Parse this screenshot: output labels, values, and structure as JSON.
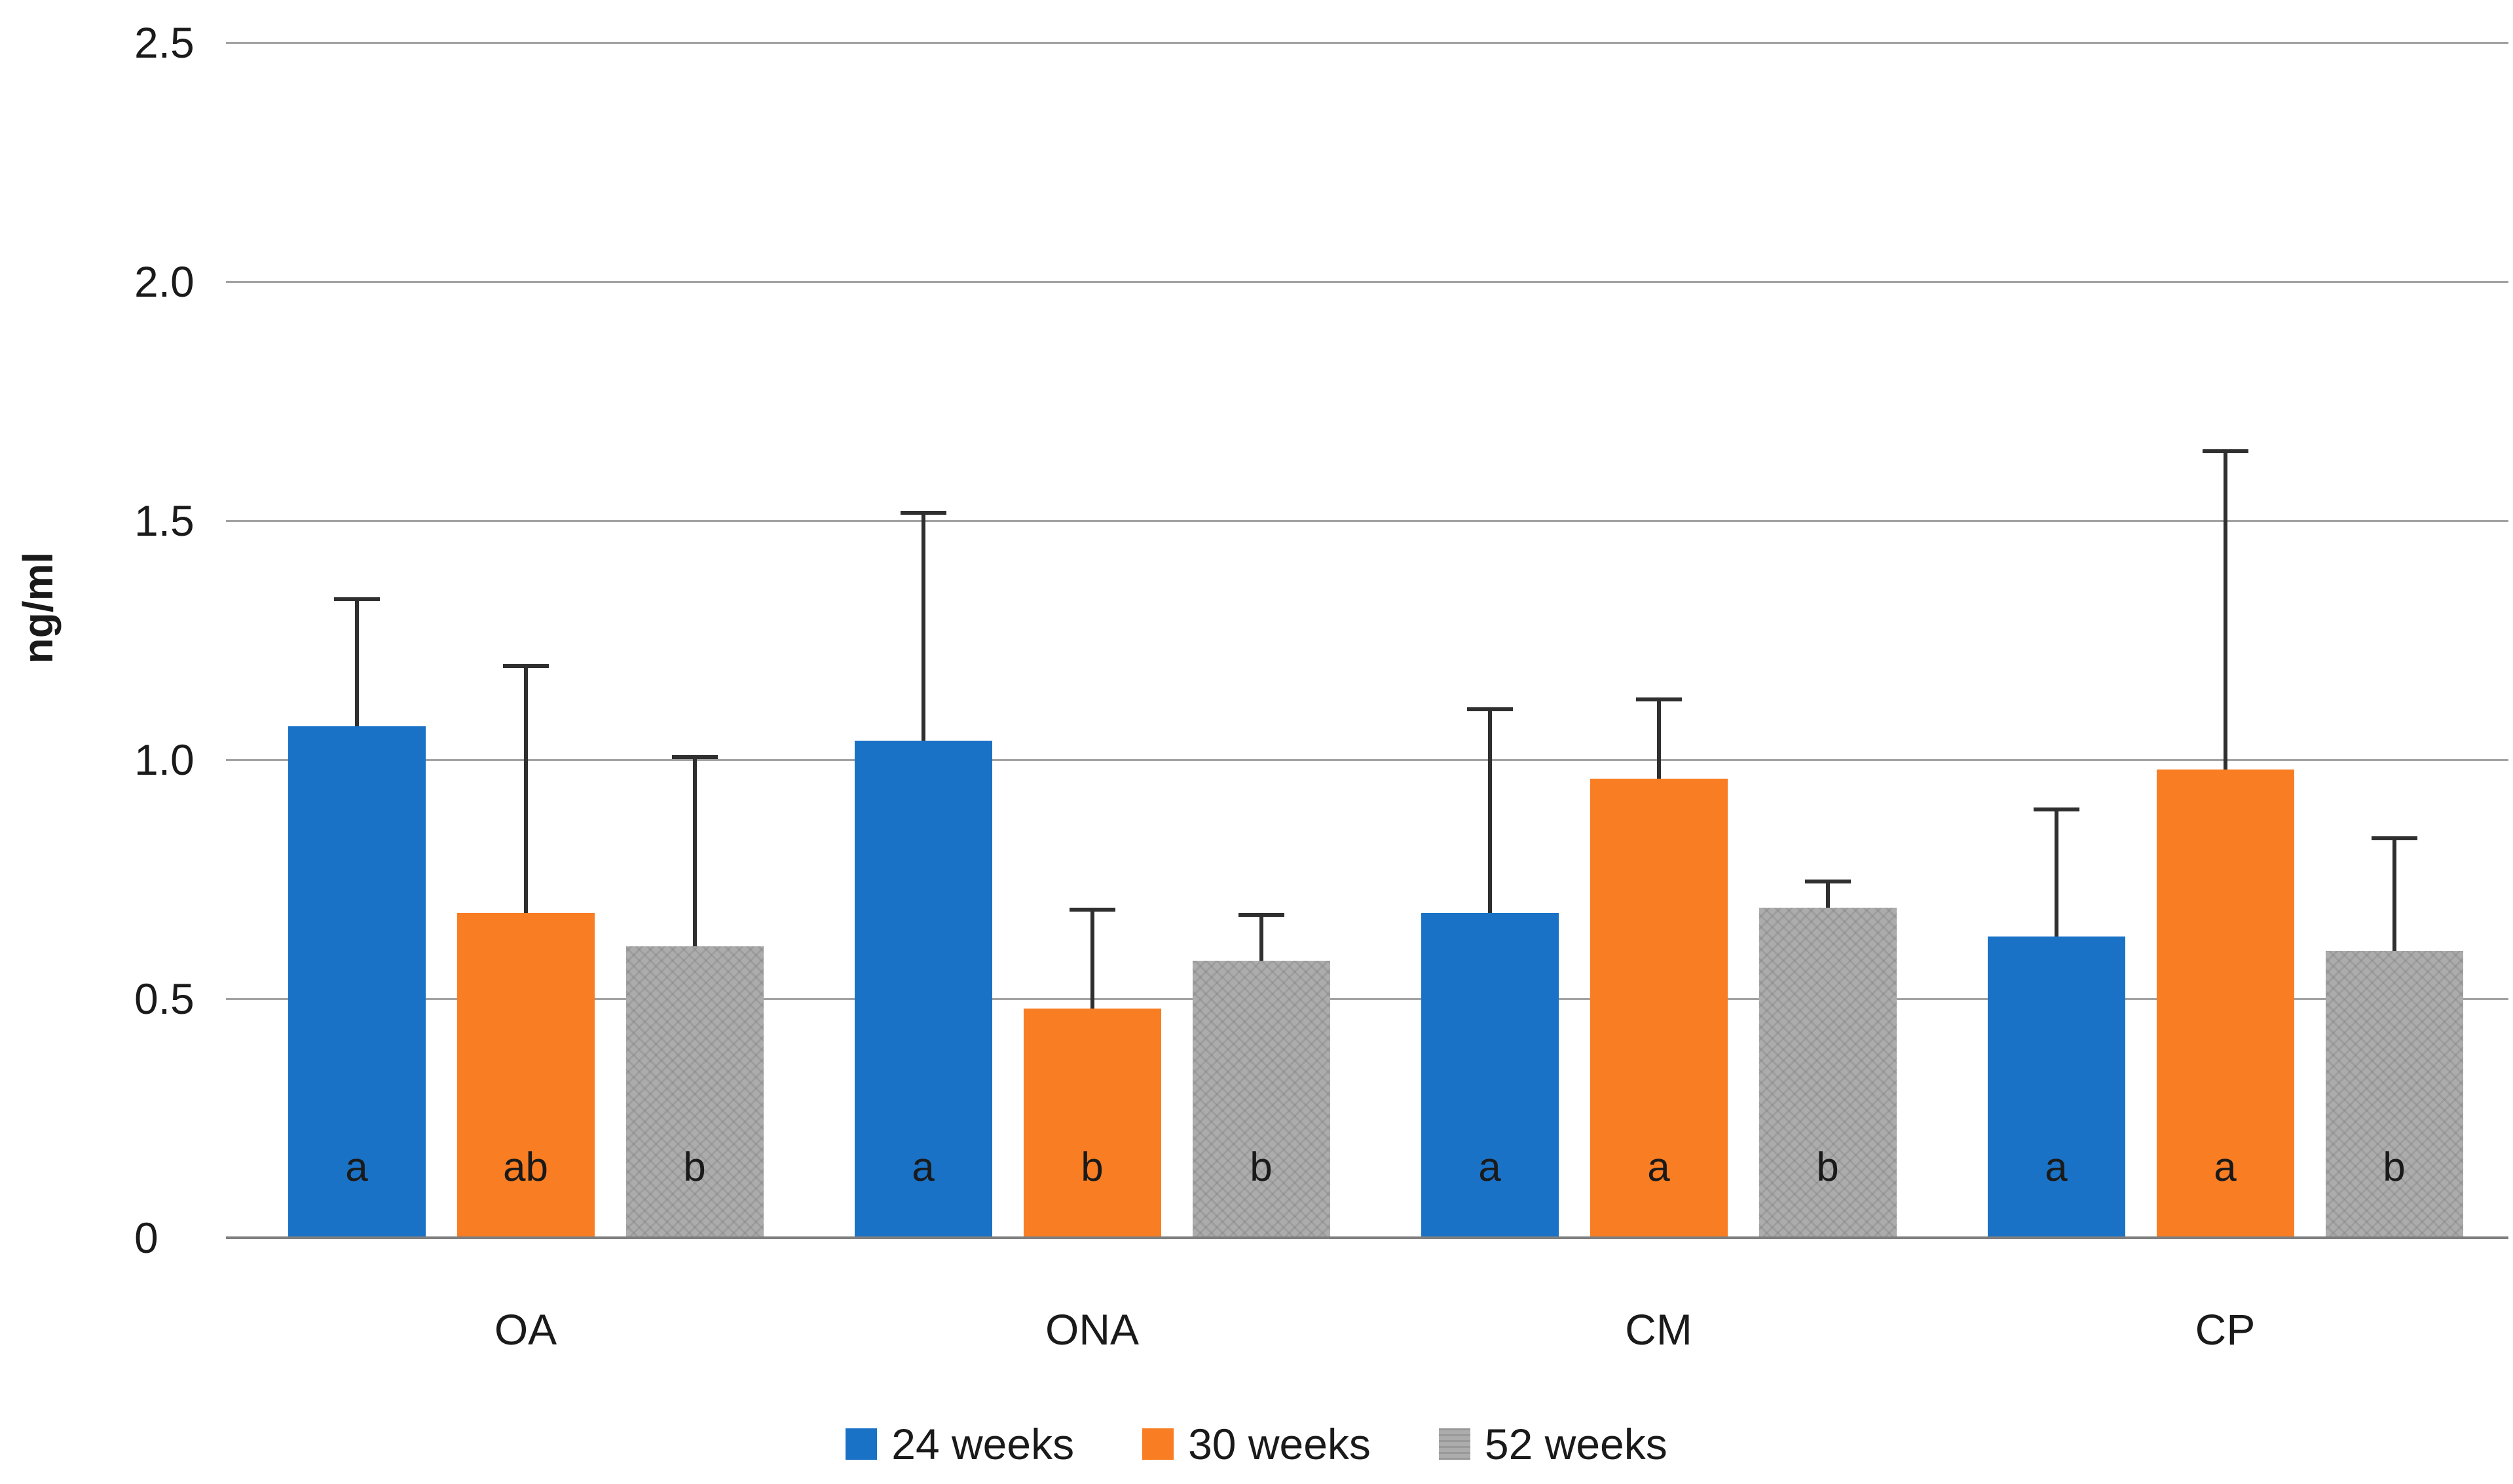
{
  "chart_data": {
    "type": "bar",
    "title": "",
    "xlabel": "",
    "ylabel": "ng/ml",
    "ylim": [
      0,
      2.5
    ],
    "ytick_interval": 0.5,
    "ytick_labels": [
      "2.5",
      "2.0",
      "1.5",
      "1.0",
      "0.5",
      "0"
    ],
    "grid": "horizontal",
    "gridline_color": "#a3a3a3",
    "axis_color": "#7f7f7f",
    "error_bar_color": "#2f2f2f",
    "legend_position": "bottom",
    "categories": [
      "OA",
      "ONA",
      "CM",
      "CP"
    ],
    "series": [
      {
        "name": "24 weeks",
        "color": "#1a72c6",
        "patterned": false,
        "values": [
          1.07,
          1.04,
          0.68,
          0.63
        ],
        "error_up": [
          0.27,
          0.48,
          0.43,
          0.27
        ],
        "sig_letters": [
          "a",
          "a",
          "a",
          "a"
        ]
      },
      {
        "name": "30 weeks",
        "color": "#f97d22",
        "patterned": false,
        "values": [
          0.68,
          0.48,
          0.96,
          0.98
        ],
        "error_up": [
          0.52,
          0.21,
          0.17,
          0.67
        ],
        "sig_letters": [
          "ab",
          "b",
          "a",
          "a"
        ]
      },
      {
        "name": "52 weeks",
        "color": "#acacac",
        "patterned": true,
        "values": [
          0.61,
          0.58,
          0.69,
          0.6
        ],
        "error_up": [
          0.4,
          0.1,
          0.06,
          0.24
        ],
        "sig_letters": [
          "b",
          "b",
          "b",
          "b"
        ]
      }
    ]
  }
}
